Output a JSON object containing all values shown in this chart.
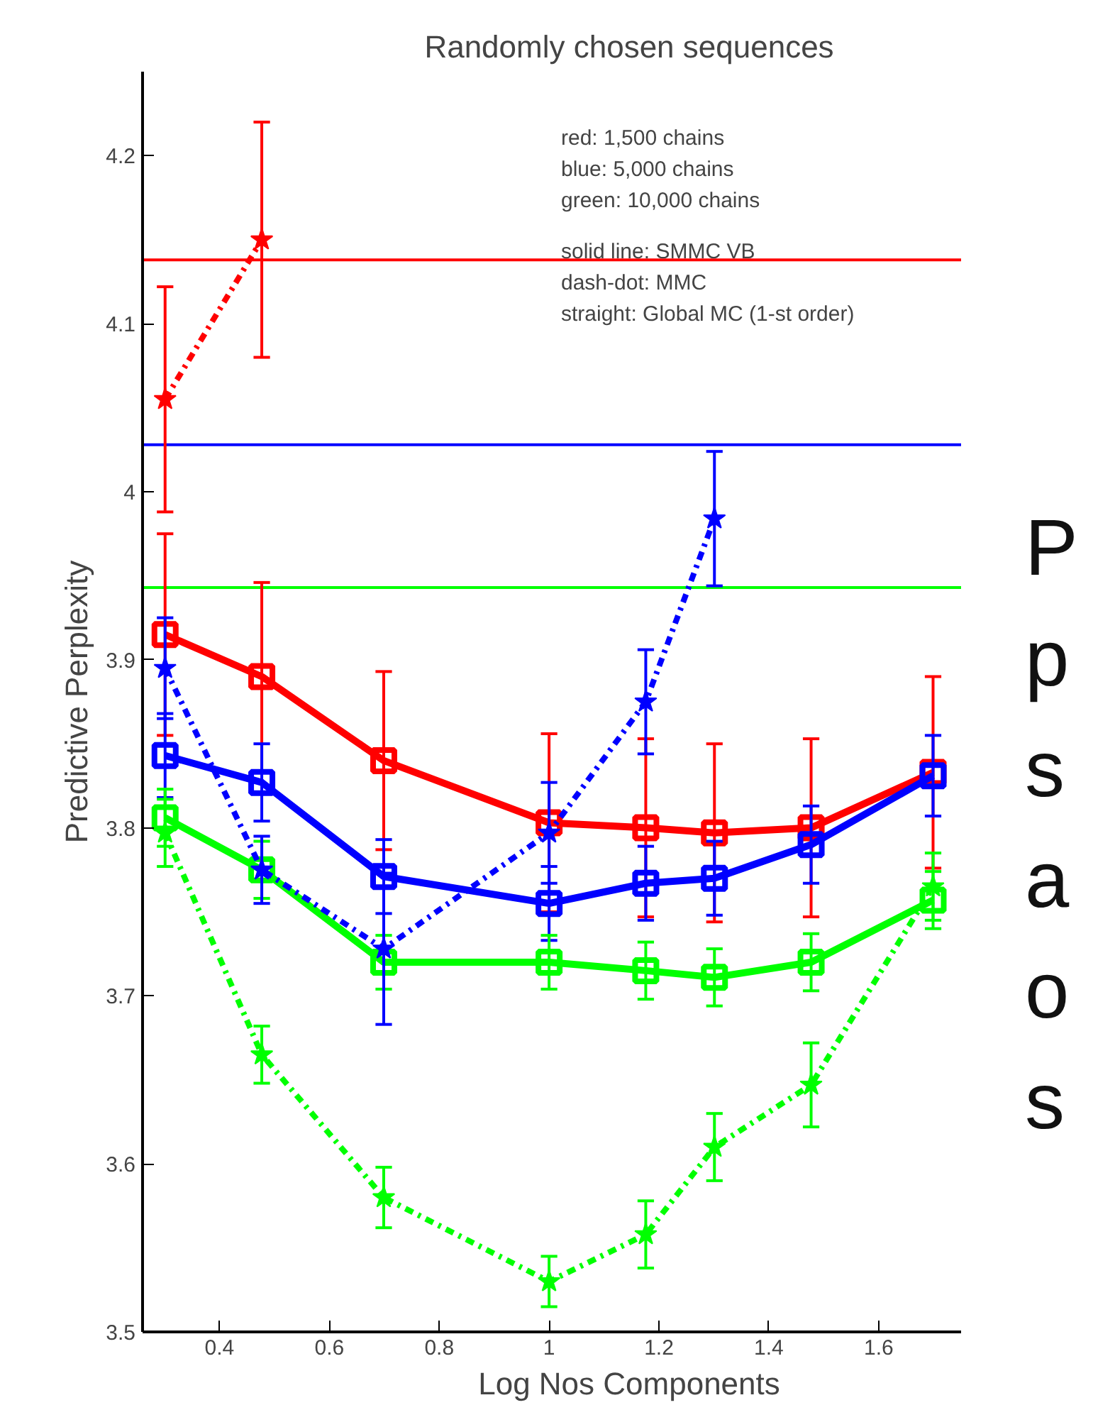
{
  "chart_data": {
    "type": "line",
    "title": "Randomly chosen sequences",
    "xlabel": "Log Nos Components",
    "ylabel": "Predictive Perplexity",
    "x": [
      0.301,
      0.477,
      0.699,
      1,
      1.176,
      1.301,
      1.477,
      1.699
    ],
    "xlim": [
      0.26,
      1.75
    ],
    "ylim": [
      3.5,
      4.25
    ],
    "xticks": [
      0.4,
      0.6,
      0.8,
      1,
      1.2,
      1.4,
      1.6
    ],
    "yticks": [
      3.5,
      3.6,
      3.7,
      3.8,
      3.9,
      4,
      4.1,
      4.2
    ],
    "grid": false,
    "series": [
      {
        "color": "#ff0000",
        "marker": "square",
        "line_style": "solid",
        "values": [
          3.915,
          3.89,
          3.84,
          3.803,
          3.8,
          3.797,
          3.8,
          3.833
        ],
        "errors": [
          0.06,
          0.056,
          0.053,
          0.053,
          0.053,
          0.053,
          0.053,
          0.057
        ]
      },
      {
        "color": "#0000ff",
        "marker": "square",
        "line_style": "solid",
        "values": [
          3.843,
          3.827,
          3.771,
          3.755,
          3.767,
          3.77,
          3.79,
          3.831
        ],
        "errors": [
          0.025,
          0.023,
          0.022,
          0.022,
          0.022,
          0.022,
          0.023,
          0.024
        ]
      },
      {
        "color": "#00ff00",
        "marker": "square",
        "line_style": "solid",
        "values": [
          3.806,
          3.775,
          3.72,
          3.72,
          3.715,
          3.711,
          3.72,
          3.757
        ],
        "errors": [
          0.017,
          0.017,
          0.016,
          0.016,
          0.017,
          0.017,
          0.017,
          0.017
        ]
      },
      {
        "color": "#ff0000",
        "marker": "star",
        "line_style": "dashdot",
        "values": [
          4.055,
          4.15,
          null,
          null,
          null,
          null,
          null,
          null
        ],
        "errors": [
          0.067,
          0.07,
          null,
          null,
          null,
          null,
          null,
          null
        ]
      },
      {
        "color": "#0000ff",
        "marker": "star",
        "line_style": "dashdot",
        "values": [
          3.895,
          3.775,
          3.728,
          3.797,
          3.875,
          3.984,
          null,
          null
        ],
        "errors": [
          0.03,
          0.02,
          0.045,
          0.03,
          0.031,
          0.04,
          null,
          null
        ]
      },
      {
        "color": "#00ff00",
        "marker": "star",
        "line_style": "dashdot",
        "values": [
          3.797,
          3.665,
          3.58,
          3.53,
          3.558,
          3.61,
          3.647,
          3.765
        ],
        "errors": [
          0.02,
          0.017,
          0.018,
          0.015,
          0.02,
          0.02,
          0.025,
          0.02
        ]
      }
    ],
    "ref_lines": [
      {
        "axis": "y",
        "value": 4.138,
        "color": "#ff0000"
      },
      {
        "axis": "y",
        "value": 4.028,
        "color": "#0000ff"
      },
      {
        "axis": "y",
        "value": 3.943,
        "color": "#00ff00"
      }
    ],
    "annotations": [
      "red: 1,500 chains",
      "blue: 5,000 chains",
      "green: 10,000 chains",
      "solid line: SMMC VB",
      "dash-dot: MMC",
      "straight: Global MC (1-st order)",
      "P",
      "p",
      "s",
      "a",
      "o",
      "s"
    ]
  }
}
